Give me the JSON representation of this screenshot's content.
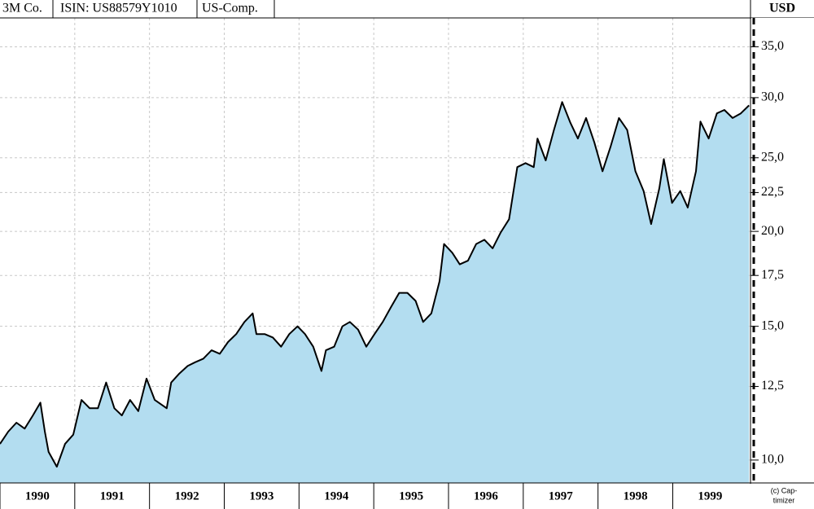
{
  "chart_data": {
    "type": "area",
    "header": [
      "3M Co.",
      "ISIN: US88579Y1010",
      "US-Comp."
    ],
    "y_unit": "USD",
    "credit": [
      "(c) Cap-",
      "timizer"
    ],
    "log_scale": true,
    "grid": true,
    "color": "#000000",
    "fill": "#b3ddf0",
    "xlim": [
      1990,
      2000.04
    ],
    "xticks": [
      1990,
      1991,
      1992,
      1993,
      1994,
      1995,
      1996,
      1997,
      1998,
      1999
    ],
    "ylim": [
      9.33,
      38.2
    ],
    "yticks": [
      {
        "value": 10,
        "label": "10,0"
      },
      {
        "value": 12.5,
        "label": "12,5"
      },
      {
        "value": 15,
        "label": "15,0"
      },
      {
        "value": 17.5,
        "label": "17,5"
      },
      {
        "value": 20,
        "label": "20,0"
      },
      {
        "value": 22.5,
        "label": "22,5"
      },
      {
        "value": 25,
        "label": "25,0"
      },
      {
        "value": 30,
        "label": "30,0"
      },
      {
        "value": 35,
        "label": "35,0"
      }
    ],
    "x": [
      1990.0,
      1990.11,
      1990.22,
      1990.33,
      1990.44,
      1990.54,
      1990.6,
      1990.65,
      1990.76,
      1990.87,
      1990.98,
      1991.09,
      1991.2,
      1991.31,
      1991.42,
      1991.53,
      1991.63,
      1991.74,
      1991.85,
      1991.96,
      1992.07,
      1992.23,
      1992.29,
      1992.4,
      1992.51,
      1992.61,
      1992.72,
      1992.83,
      1992.94,
      1993.05,
      1993.16,
      1993.27,
      1993.38,
      1993.43,
      1993.54,
      1993.65,
      1993.76,
      1993.87,
      1993.98,
      1994.08,
      1994.19,
      1994.3,
      1994.36,
      1994.47,
      1994.58,
      1994.68,
      1994.79,
      1994.9,
      1995.01,
      1995.12,
      1995.23,
      1995.34,
      1995.45,
      1995.56,
      1995.66,
      1995.77,
      1995.88,
      1995.94,
      1996.05,
      1996.15,
      1996.26,
      1996.37,
      1996.48,
      1996.59,
      1996.7,
      1996.81,
      1996.86,
      1996.92,
      1997.03,
      1997.14,
      1997.19,
      1997.3,
      1997.41,
      1997.52,
      1997.63,
      1997.73,
      1997.84,
      1997.95,
      1998.06,
      1998.17,
      1998.28,
      1998.39,
      1998.5,
      1998.61,
      1998.71,
      1998.82,
      1998.88,
      1998.99,
      1999.1,
      1999.2,
      1999.31,
      1999.37,
      1999.48,
      1999.59,
      1999.69,
      1999.8,
      1999.91,
      2000.02
    ],
    "values": [
      10.5,
      10.9,
      11.2,
      11.0,
      11.45,
      11.9,
      10.9,
      10.25,
      9.8,
      10.5,
      10.8,
      12.0,
      11.7,
      11.7,
      12.65,
      11.7,
      11.45,
      12.0,
      11.6,
      12.8,
      12.0,
      11.7,
      12.65,
      13.0,
      13.3,
      13.45,
      13.6,
      13.95,
      13.8,
      14.3,
      14.65,
      15.2,
      15.6,
      14.65,
      14.65,
      14.5,
      14.1,
      14.65,
      15.0,
      14.65,
      14.1,
      13.1,
      13.95,
      14.1,
      15.0,
      15.2,
      14.85,
      14.1,
      14.65,
      15.2,
      15.9,
      16.6,
      16.6,
      16.2,
      15.2,
      15.6,
      17.2,
      19.25,
      18.75,
      18.1,
      18.3,
      19.25,
      19.5,
      19.0,
      19.95,
      20.75,
      22.3,
      24.3,
      24.6,
      24.3,
      26.5,
      24.8,
      27.2,
      29.6,
      27.8,
      26.5,
      28.2,
      26.2,
      24.0,
      25.9,
      28.2,
      27.2,
      24.0,
      22.6,
      20.45,
      22.8,
      24.9,
      21.8,
      22.6,
      21.5,
      24.0,
      27.9,
      26.5,
      28.6,
      28.9,
      28.2,
      28.6,
      29.3
    ]
  }
}
